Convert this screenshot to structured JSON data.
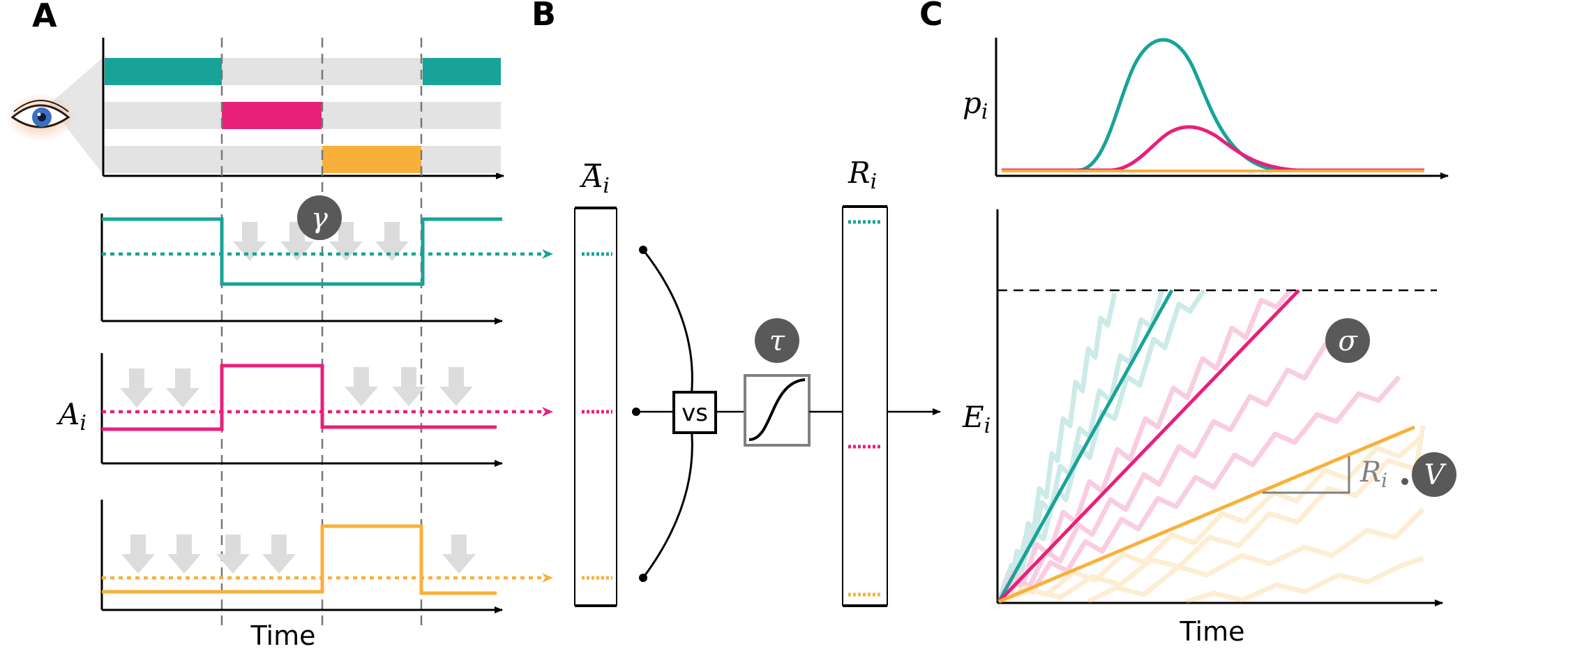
{
  "panels": {
    "a": "A",
    "b": "B",
    "c": "C"
  },
  "labels": {
    "time_a": "Time",
    "time_c": "Time",
    "a_i": "A",
    "a_i_sub": "i",
    "abar_i": "A",
    "abar_i_sub": "i",
    "r_i": "R",
    "r_i_sub": "i",
    "p_i": "p",
    "p_i_sub": "i",
    "e_i": "E",
    "e_i_sub": "i",
    "slope_r": "R",
    "slope_r_sub": "i"
  },
  "badges": {
    "gamma": "γ",
    "tau": "τ",
    "sigma": "σ",
    "v": "V"
  },
  "comparator": {
    "label": "vs"
  },
  "colors": {
    "teal": "#17a398",
    "magenta": "#e8207a",
    "orange": "#f9b03b",
    "gray_track": "#e3e3e3",
    "arrow_gray": "#dcdcdc",
    "badge": "#595959"
  },
  "icons": {
    "eye": "eye-icon"
  }
}
